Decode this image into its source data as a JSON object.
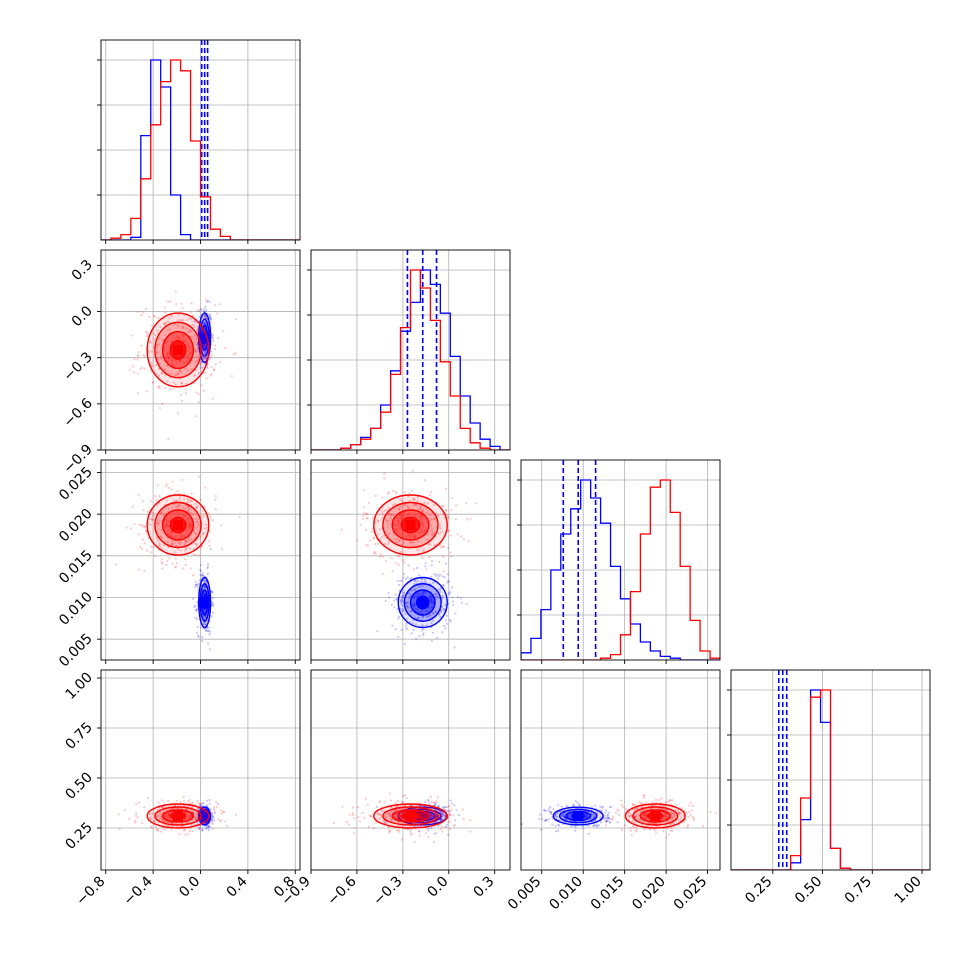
{
  "chart_data": {
    "type": "corner",
    "title": "",
    "grid": true,
    "parameters": [
      {
        "ticks": [
          -0.8,
          -0.4,
          0.0,
          0.4,
          0.8
        ],
        "tick_labels": [
          "−0.8",
          "−0.4",
          "0.0",
          "0.4",
          "0.8"
        ],
        "range": [
          -0.84,
          0.84
        ]
      },
      {
        "ticks": [
          -0.9,
          -0.6,
          -0.3,
          0.0,
          0.3
        ],
        "tick_labels": [
          "−0.9",
          "−0.6",
          "−0.3",
          "0.0",
          "0.3"
        ],
        "range": [
          -0.9,
          0.4
        ]
      },
      {
        "ticks": [
          0.005,
          0.01,
          0.015,
          0.02,
          0.025
        ],
        "tick_labels": [
          "0.005",
          "0.010",
          "0.015",
          "0.020",
          "0.025"
        ],
        "range": [
          0.0025,
          0.0265
        ]
      },
      {
        "ticks": [
          0.25,
          0.5,
          0.75,
          1.0
        ],
        "tick_labels": [
          "0.25",
          "0.50",
          "0.75",
          "1.00"
        ],
        "range": [
          0.04,
          1.04
        ]
      }
    ],
    "series": [
      {
        "color": "#0000ff",
        "quantiles": [
          [
            0.01,
            0.035,
            0.06
          ],
          [
            -0.27,
            -0.17,
            -0.08
          ],
          [
            0.0076,
            0.0094,
            0.0115
          ],
          [
            0.28,
            0.3,
            0.32
          ]
        ],
        "means": [
          0.035,
          -0.17,
          0.0094,
          0.31
        ],
        "sds": [
          0.025,
          0.08,
          0.0015,
          0.022
        ],
        "hist_bins": [
          [
            -0.8,
            -0.04,
            0.2,
            20
          ],
          [
            -0.9,
            -0.5,
            0.3,
            20
          ],
          [
            0.004,
            0.002,
            0.014,
            20
          ],
          [
            0.05,
            0.2,
            0.45,
            20
          ]
        ],
        "histograms": [
          [
            0,
            0,
            0,
            1.5,
            58,
            100,
            85,
            25,
            3,
            0,
            0,
            0,
            0,
            0,
            0,
            0,
            0,
            0,
            0,
            0
          ],
          [
            0,
            0,
            0,
            1,
            3,
            7,
            12,
            25,
            44,
            66,
            82,
            100,
            92,
            76,
            52,
            30,
            15,
            6,
            2,
            0
          ],
          [
            4,
            12,
            28,
            50,
            70,
            84,
            100,
            90,
            76,
            52,
            34,
            20,
            10,
            5,
            2,
            1,
            0,
            0,
            0,
            0
          ],
          [
            0,
            0,
            0,
            0,
            0,
            0,
            4,
            28,
            100,
            82,
            12,
            1,
            0,
            0,
            0,
            0,
            0,
            0,
            0,
            0
          ]
        ]
      },
      {
        "color": "#ff0000",
        "quantiles": [],
        "means": [
          -0.19,
          -0.25,
          0.0187,
          0.31
        ],
        "sds": [
          0.13,
          0.12,
          0.0018,
          0.03
        ],
        "hist_bins": [
          [
            -0.8,
            -0.04,
            0.2,
            20
          ],
          [
            -0.9,
            -0.5,
            0.3,
            20
          ],
          [
            0.004,
            0.002,
            0.014,
            20
          ],
          [
            0.05,
            0.2,
            0.45,
            20
          ]
        ],
        "histograms": [
          [
            0,
            1,
            3,
            12,
            34,
            64,
            88,
            100,
            94,
            55,
            24,
            6,
            2,
            0,
            0,
            0,
            0,
            0,
            0,
            0
          ],
          [
            0,
            0,
            0,
            1,
            3,
            6,
            12,
            21,
            42,
            68,
            100,
            90,
            72,
            49,
            30,
            12,
            4,
            1,
            0,
            0
          ],
          [
            0,
            0,
            0,
            0,
            0,
            0,
            0,
            0,
            1,
            3,
            14,
            38,
            70,
            96,
            100,
            82,
            52,
            22,
            5,
            1
          ],
          [
            0,
            0,
            0,
            0,
            0,
            0,
            8,
            40,
            96,
            100,
            12,
            1,
            0,
            0,
            0,
            0,
            0,
            0,
            0,
            0
          ]
        ]
      }
    ]
  }
}
